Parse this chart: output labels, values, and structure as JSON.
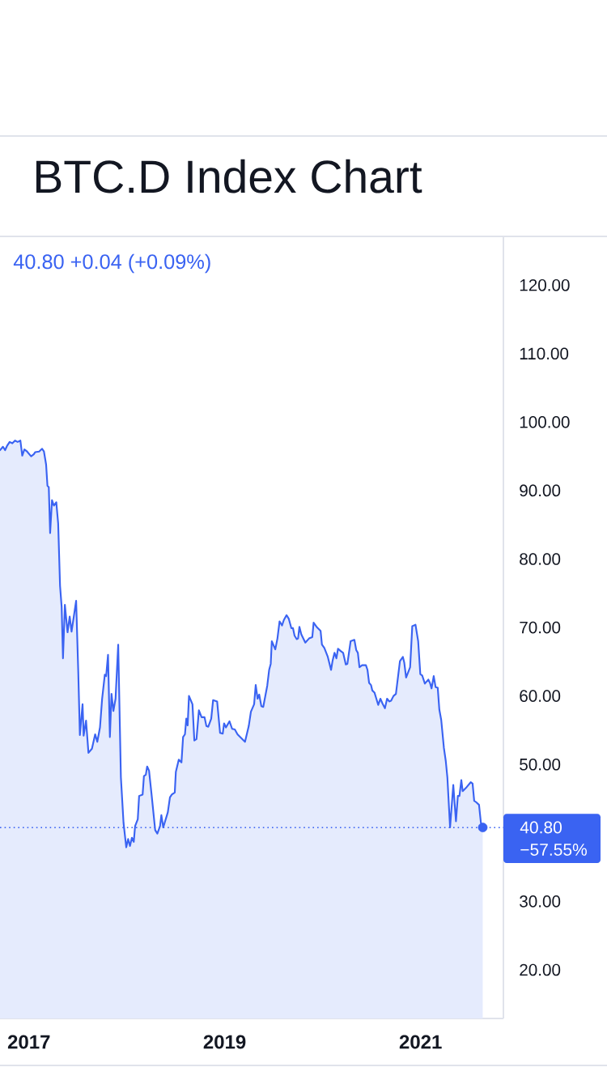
{
  "chart_data": {
    "type": "area",
    "title": "BTC.D Index Chart",
    "subtitle": "40.80 +0.04 (+0.09%)",
    "annotations": [
      "−57.55%"
    ],
    "x": [
      "2016-09-15",
      "2016-09-26",
      "2016-10-04",
      "2016-10-11",
      "2016-10-21",
      "2016-10-31",
      "2016-11-10",
      "2016-11-20",
      "2016-11-30",
      "2016-12-07",
      "2016-12-15",
      "2016-12-25",
      "2017-01-09",
      "2017-01-19",
      "2017-01-24",
      "2017-02-08",
      "2017-02-19",
      "2017-02-26",
      "2017-03-06",
      "2017-03-11",
      "2017-03-16",
      "2017-03-21",
      "2017-03-28",
      "2017-04-04",
      "2017-04-13",
      "2017-04-20",
      "2017-04-27",
      "2017-05-03",
      "2017-05-08",
      "2017-05-15",
      "2017-05-25",
      "2017-06-02",
      "2017-06-09",
      "2017-06-26",
      "2017-07-04",
      "2017-07-10",
      "2017-07-20",
      "2017-07-24",
      "2017-08-02",
      "2017-08-11",
      "2017-08-24",
      "2017-09-05",
      "2017-09-13",
      "2017-09-23",
      "2017-10-01",
      "2017-10-11",
      "2017-10-16",
      "2017-10-23",
      "2017-10-30",
      "2017-11-05",
      "2017-11-12",
      "2017-11-20",
      "2017-11-30",
      "2017-12-10",
      "2017-12-20",
      "2017-12-30",
      "2018-01-06",
      "2018-01-13",
      "2018-01-20",
      "2018-01-27",
      "2018-02-01",
      "2018-02-11",
      "2018-02-16",
      "2018-03-01",
      "2018-03-06",
      "2018-03-13",
      "2018-03-18",
      "2018-03-25",
      "2018-04-04",
      "2018-04-17",
      "2018-04-25",
      "2018-05-05",
      "2018-05-10",
      "2018-05-17",
      "2018-06-03",
      "2018-06-11",
      "2018-06-18",
      "2018-06-29",
      "2018-07-03",
      "2018-07-14",
      "2018-07-24",
      "2018-07-30",
      "2018-08-06",
      "2018-08-11",
      "2018-08-16",
      "2018-08-21",
      "2018-09-03",
      "2018-09-10",
      "2018-09-18",
      "2018-09-27",
      "2018-10-07",
      "2018-10-18",
      "2018-10-25",
      "2018-11-01",
      "2018-11-12",
      "2018-11-19",
      "2018-12-04",
      "2018-12-15",
      "2018-12-25",
      "2018-12-30",
      "2019-01-06",
      "2019-01-19",
      "2019-01-29",
      "2019-02-08",
      "2019-02-18",
      "2019-03-18",
      "2019-04-01",
      "2019-04-09",
      "2019-04-21",
      "2019-04-27",
      "2019-05-04",
      "2019-05-10",
      "2019-05-18",
      "2019-05-25",
      "2019-06-09",
      "2019-06-16",
      "2019-06-22",
      "2019-06-26",
      "2019-07-09",
      "2019-07-17",
      "2019-07-25",
      "2019-08-03",
      "2019-08-10",
      "2019-08-20",
      "2019-08-28",
      "2019-09-07",
      "2019-09-13",
      "2019-09-19",
      "2019-09-27",
      "2019-10-02",
      "2019-10-07",
      "2019-10-14",
      "2019-10-29",
      "2019-11-12",
      "2019-11-24",
      "2019-11-29",
      "2019-12-12",
      "2019-12-25",
      "2019-12-30",
      "2020-01-08",
      "2020-01-21",
      "2020-02-02",
      "2020-02-08",
      "2020-02-15",
      "2020-02-22",
      "2020-02-28",
      "2020-03-08",
      "2020-03-18",
      "2020-03-28",
      "2020-04-03",
      "2020-04-15",
      "2020-04-29",
      "2020-05-06",
      "2020-05-12",
      "2020-05-18",
      "2020-05-28",
      "2020-06-11",
      "2020-06-17",
      "2020-06-23",
      "2020-06-30",
      "2020-07-05",
      "2020-07-13",
      "2020-07-20",
      "2020-07-27",
      "2020-08-04",
      "2020-08-12",
      "2020-08-21",
      "2020-08-29",
      "2020-09-06",
      "2020-09-13",
      "2020-09-22",
      "2020-10-01",
      "2020-10-16",
      "2020-10-27",
      "2020-11-01",
      "2020-11-08",
      "2020-11-23",
      "2020-12-01",
      "2020-12-13",
      "2020-12-23",
      "2020-12-31",
      "2021-01-07",
      "2021-01-17",
      "2021-01-30",
      "2021-02-06",
      "2021-02-11",
      "2021-02-19",
      "2021-02-26",
      "2021-03-06",
      "2021-03-12",
      "2021-03-19",
      "2021-03-29",
      "2021-04-05",
      "2021-04-11",
      "2021-04-21",
      "2021-05-03",
      "2021-05-13",
      "2021-05-20",
      "2021-05-26",
      "2021-06-02",
      "2021-06-07",
      "2021-06-22",
      "2021-07-07",
      "2021-07-14",
      "2021-07-20",
      "2021-07-27",
      "2021-08-07",
      "2021-08-14",
      "2021-08-21"
    ],
    "series": [
      {
        "color": "#3a63f2",
        "values": [
          95.9,
          96.4,
          95.9,
          96.5,
          97.1,
          96.9,
          97.3,
          97.1,
          97.3,
          95.1,
          96.0,
          95.7,
          95.0,
          95.3,
          95.6,
          95.7,
          96.1,
          95.7,
          93.8,
          90.7,
          90.5,
          83.8,
          88.6,
          87.8,
          88.3,
          85.2,
          76.1,
          73.0,
          65.5,
          73.3,
          69.3,
          71.6,
          69.4,
          73.9,
          63.5,
          54.3,
          58.8,
          54.2,
          56.4,
          51.7,
          52.3,
          54.4,
          53.3,
          55.4,
          59.6,
          63.1,
          62.9,
          66.0,
          54.0,
          60.3,
          57.8,
          59.6,
          67.5,
          48.1,
          41.4,
          37.9,
          39.1,
          38.1,
          39.3,
          38.7,
          41.0,
          42.0,
          45.4,
          45.6,
          48.3,
          48.5,
          49.7,
          49.1,
          45.4,
          40.4,
          39.9,
          41.0,
          42.6,
          40.8,
          43.0,
          45.2,
          45.6,
          45.9,
          48.9,
          50.7,
          50.3,
          54.0,
          54.4,
          56.7,
          55.7,
          60.0,
          58.8,
          53.5,
          53.7,
          57.9,
          56.9,
          56.9,
          55.6,
          55.5,
          56.7,
          59.4,
          59.2,
          54.6,
          54.5,
          56.0,
          55.4,
          56.3,
          55.2,
          55.1,
          54.4,
          53.3,
          55.6,
          57.7,
          58.8,
          61.6,
          59.6,
          60.2,
          58.5,
          58.4,
          61.5,
          63.8,
          64.7,
          68.0,
          66.8,
          68.4,
          70.9,
          70.3,
          71.1,
          71.8,
          71.3,
          69.9,
          69.9,
          68.8,
          68.3,
          68.4,
          70.1,
          69.0,
          67.8,
          68.4,
          68.6,
          70.7,
          70.0,
          69.5,
          67.5,
          67.0,
          65.7,
          63.8,
          65.2,
          66.3,
          65.5,
          66.9,
          66.6,
          66.3,
          64.6,
          64.7,
          68.0,
          68.2,
          66.7,
          66.3,
          64.2,
          64.5,
          64.5,
          63.8,
          61.9,
          61.6,
          60.8,
          60.5,
          59.6,
          58.7,
          59.6,
          58.9,
          58.2,
          59.6,
          59.2,
          59.3,
          60.0,
          60.3,
          65.1,
          65.7,
          64.9,
          62.7,
          64.2,
          70.2,
          70.4,
          68.0,
          63.2,
          63.0,
          61.8,
          62.4,
          61.8,
          61.1,
          62.9,
          61.3,
          61.2,
          58.0,
          56.5,
          52.4,
          50.5,
          48.1,
          40.8,
          47.0,
          41.7,
          45.4,
          45.4,
          47.7,
          46.1,
          46.7,
          47.4,
          47.2,
          44.7,
          44.5,
          44.1,
          41.5,
          40.8
        ]
      },
      {
        "type": "scatter",
        "color": "#3a63f2",
        "x": [
          "2021-08-21"
        ],
        "values": [
          40.8
        ]
      }
    ],
    "xlim": [
      "2016-09-15",
      "2021-11-06"
    ],
    "xticks": [
      "2017",
      "2019",
      "2021"
    ],
    "ylim": [
      12.9,
      127.0
    ],
    "yticks": [
      {
        "value": 20,
        "label": "20.00"
      },
      {
        "value": 30,
        "label": "30.00"
      },
      {
        "value": 50,
        "label": "50.00"
      },
      {
        "value": 60,
        "label": "60.00"
      },
      {
        "value": 70,
        "label": "70.00"
      },
      {
        "value": 80,
        "label": "80.00"
      },
      {
        "value": 90,
        "label": "90.00"
      },
      {
        "value": 100,
        "label": "100.00"
      },
      {
        "value": 110,
        "label": "110.00"
      },
      {
        "value": 120,
        "label": "120.00"
      }
    ],
    "ref_lines": [
      {
        "axis": "y",
        "value": 40.8,
        "label": "40.80",
        "color": "#3a63f2",
        "line_style": "dotted"
      }
    ]
  }
}
